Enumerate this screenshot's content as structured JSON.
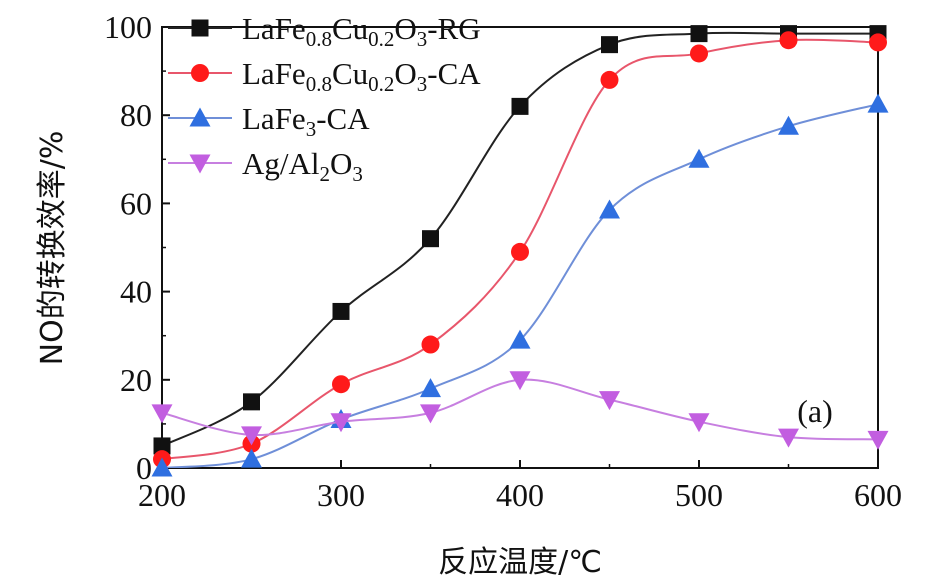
{
  "chart_data": {
    "type": "line",
    "title": "",
    "xlabel": "反应温度/℃",
    "ylabel": "NO的转换效率/%",
    "xlim": [
      200,
      600
    ],
    "ylim": [
      0,
      100
    ],
    "xticks": [
      200,
      300,
      400,
      500,
      600
    ],
    "yticks": [
      0,
      20,
      40,
      60,
      80,
      100
    ],
    "grid": false,
    "legend_position": "top-left",
    "annotation": "(a)",
    "series": [
      {
        "name": "LaFe0.8Cu0.2O3-RG",
        "legend": {
          "base": "LaFe",
          "sub1": "0.8",
          "mid": "Cu",
          "sub2": "0.2",
          "mid2": "O",
          "sub3": "3",
          "tail": "-RG"
        },
        "marker": "square",
        "color": "#111111",
        "line_color": "#222222",
        "x": [
          200,
          250,
          300,
          350,
          400,
          450,
          500,
          550,
          600
        ],
        "y": [
          5,
          15,
          35.5,
          52,
          82,
          96,
          98.5,
          98.5,
          98.5
        ]
      },
      {
        "name": "LaFe0.8Cu0.2O3-CA",
        "legend": {
          "base": "LaFe",
          "sub1": "0.8",
          "mid": "Cu",
          "sub2": "0.2",
          "mid2": "O",
          "sub3": "3",
          "tail": "-CA"
        },
        "marker": "circle",
        "color": "#ff1a1a",
        "line_color": "#e8566b",
        "x": [
          200,
          250,
          300,
          350,
          400,
          450,
          500,
          550,
          600
        ],
        "y": [
          2,
          5.5,
          19,
          28,
          49,
          88,
          94,
          97,
          96.5
        ]
      },
      {
        "name": "LaFe3-CA",
        "legend": {
          "base": "LaFe",
          "sub1": "3",
          "tail": "-CA"
        },
        "marker": "triangle-up",
        "color": "#2f6fe0",
        "line_color": "#6f8fd8",
        "x": [
          200,
          250,
          300,
          350,
          400,
          450,
          500,
          550,
          600
        ],
        "y": [
          0,
          2,
          11,
          18,
          29,
          58.5,
          70,
          77.5,
          82.5
        ]
      },
      {
        "name": "Ag/Al2O3",
        "legend": {
          "base": "Ag/Al",
          "sub1": "2",
          "mid": "O",
          "sub2": "3"
        },
        "marker": "triangle-down",
        "color": "#c25ee0",
        "line_color": "#c77fe0",
        "x": [
          200,
          250,
          300,
          350,
          400,
          450,
          500,
          550,
          600
        ],
        "y": [
          12.5,
          7.5,
          10.5,
          12.5,
          20,
          15.5,
          10.5,
          7,
          6.5
        ]
      }
    ]
  }
}
